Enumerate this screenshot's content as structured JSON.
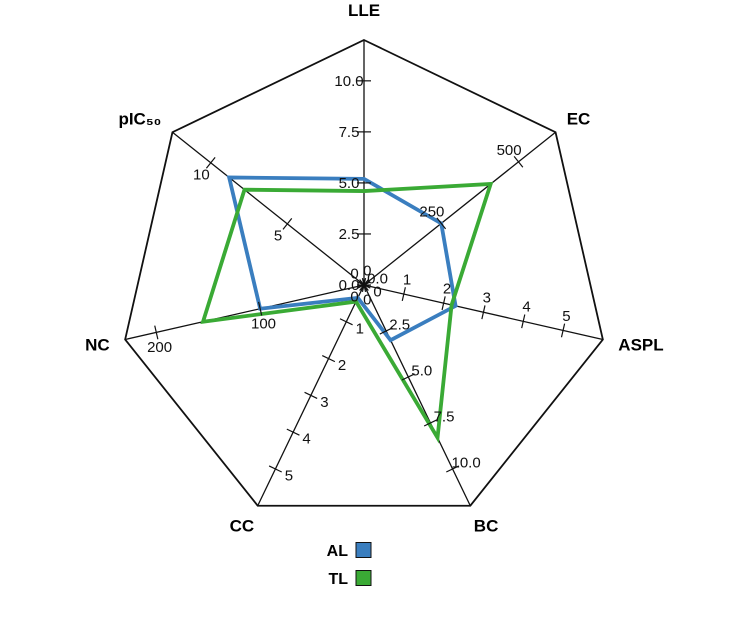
{
  "chart_data": {
    "type": "radar",
    "axes": [
      {
        "name": "LLE",
        "range": [
          0,
          12
        ],
        "ticks": [
          0,
          2.5,
          5,
          7.5,
          10
        ],
        "tick_labels": [
          "0.0",
          "2.5",
          "5.0",
          "7.5",
          "10.0"
        ]
      },
      {
        "name": "EC",
        "range": [
          0,
          620
        ],
        "ticks": [
          0,
          250,
          500
        ],
        "tick_labels": [
          "0",
          "250",
          "500"
        ]
      },
      {
        "name": "ASPL",
        "range": [
          0,
          6
        ],
        "ticks": [
          0,
          1,
          2,
          3,
          4,
          5
        ],
        "tick_labels": [
          "0",
          "1",
          "2",
          "3",
          "4",
          "5"
        ]
      },
      {
        "name": "BC",
        "range": [
          0,
          12
        ],
        "ticks": [
          0,
          2.5,
          5,
          7.5,
          10
        ],
        "tick_labels": [
          "0.0",
          "2.5",
          "5.0",
          "7.5",
          "10.0"
        ]
      },
      {
        "name": "CC",
        "range": [
          0,
          6
        ],
        "ticks": [
          0,
          1,
          2,
          3,
          4,
          5
        ],
        "tick_labels": [
          "0",
          "1",
          "2",
          "3",
          "4",
          "5"
        ]
      },
      {
        "name": "NC",
        "range": [
          0,
          230
        ],
        "ticks": [
          0,
          100,
          200
        ],
        "tick_labels": [
          "0",
          "100",
          "200"
        ]
      },
      {
        "name": "pIC₅₀",
        "range": [
          0,
          12.5
        ],
        "ticks": [
          0,
          5,
          10
        ],
        "tick_labels": [
          "0",
          "5",
          "10"
        ]
      }
    ],
    "series": [
      {
        "name": "AL",
        "color": "#3a7ebf",
        "values": [
          5.2,
          250,
          2.3,
          3.0,
          0.35,
          100,
          8.8
        ]
      },
      {
        "name": "TL",
        "color": "#3aaa35",
        "values": [
          4.6,
          410,
          2.2,
          8.3,
          0.45,
          155,
          7.8
        ]
      }
    ],
    "legend_position": "bottom",
    "grid": false
  }
}
